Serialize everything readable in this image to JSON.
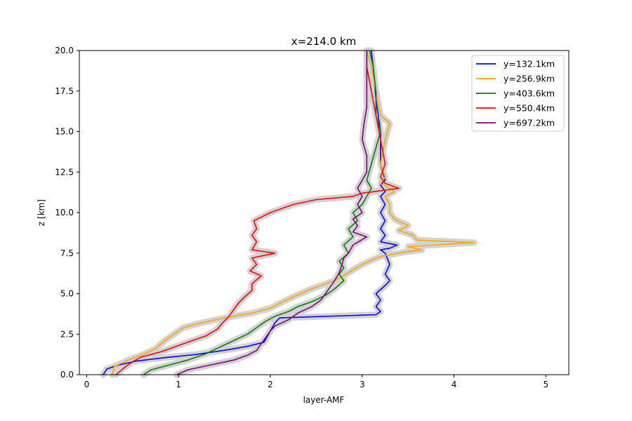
{
  "chart_data": {
    "type": "line",
    "title": "x=214.0 km",
    "xlabel": "layer-AMF",
    "ylabel": "z [km]",
    "xlim": [
      -0.08,
      5.25
    ],
    "ylim": [
      0,
      20
    ],
    "xticks": [
      0,
      1,
      2,
      3,
      4,
      5
    ],
    "xtick_labels": [
      "0",
      "1",
      "2",
      "3",
      "4",
      "5"
    ],
    "yticks": [
      0,
      2.5,
      5,
      7.5,
      10,
      12.5,
      15,
      17.5,
      20
    ],
    "ytick_labels": [
      "0.0",
      "2.5",
      "5.0",
      "7.5",
      "10.0",
      "12.5",
      "15.0",
      "17.5",
      "20.0"
    ],
    "grid": false,
    "legend_position": "top-right",
    "uncertainty_band_color": "#d3d3d3",
    "series": [
      {
        "name": "y=132.1km",
        "color": "#0000ff",
        "points": [
          [
            0.18,
            0
          ],
          [
            0.22,
            0.35
          ],
          [
            0.35,
            0.6
          ],
          [
            0.55,
            0.85
          ],
          [
            0.85,
            1.05
          ],
          [
            1.2,
            1.25
          ],
          [
            1.55,
            1.55
          ],
          [
            1.75,
            1.75
          ],
          [
            1.93,
            2.0
          ],
          [
            1.98,
            2.5
          ],
          [
            2.05,
            3.2
          ],
          [
            2.1,
            3.5
          ],
          [
            3.15,
            3.7
          ],
          [
            3.2,
            3.9
          ],
          [
            3.15,
            4.2
          ],
          [
            3.2,
            4.6
          ],
          [
            3.15,
            5.0
          ],
          [
            3.25,
            5.5
          ],
          [
            3.3,
            5.8
          ],
          [
            3.25,
            6.2
          ],
          [
            3.3,
            6.8
          ],
          [
            3.25,
            7.5
          ],
          [
            3.2,
            7.7
          ],
          [
            3.3,
            7.8
          ],
          [
            3.38,
            8.0
          ],
          [
            3.2,
            8.2
          ],
          [
            3.25,
            8.6
          ],
          [
            3.2,
            9.0
          ],
          [
            3.25,
            9.5
          ],
          [
            3.2,
            10.0
          ],
          [
            3.25,
            10.5
          ],
          [
            3.2,
            11.0
          ],
          [
            3.25,
            11.3
          ],
          [
            3.2,
            11.7
          ],
          [
            3.25,
            12.0
          ],
          [
            3.2,
            13.0
          ],
          [
            3.2,
            15.0
          ],
          [
            3.15,
            17.0
          ],
          [
            3.12,
            19.0
          ],
          [
            3.1,
            20.0
          ]
        ]
      },
      {
        "name": "y=256.9km",
        "color": "#ffa500",
        "points": [
          [
            0.28,
            0
          ],
          [
            0.3,
            0.5
          ],
          [
            0.45,
            0.9
          ],
          [
            0.6,
            1.2
          ],
          [
            0.75,
            1.6
          ],
          [
            0.85,
            2.1
          ],
          [
            0.95,
            2.5
          ],
          [
            1.05,
            2.9
          ],
          [
            1.25,
            3.2
          ],
          [
            1.5,
            3.5
          ],
          [
            1.8,
            3.8
          ],
          [
            2.0,
            4.1
          ],
          [
            2.1,
            4.4
          ],
          [
            2.25,
            4.8
          ],
          [
            2.45,
            5.3
          ],
          [
            2.7,
            5.8
          ],
          [
            2.85,
            6.3
          ],
          [
            3.0,
            6.8
          ],
          [
            3.2,
            7.3
          ],
          [
            3.5,
            7.6
          ],
          [
            3.65,
            7.7
          ],
          [
            3.5,
            7.9
          ],
          [
            4.22,
            8.15
          ],
          [
            3.6,
            8.3
          ],
          [
            3.55,
            8.6
          ],
          [
            3.4,
            8.9
          ],
          [
            3.5,
            9.2
          ],
          [
            3.35,
            9.6
          ],
          [
            3.3,
            10.0
          ],
          [
            3.3,
            10.5
          ],
          [
            3.25,
            11.0
          ],
          [
            3.35,
            11.3
          ],
          [
            3.3,
            11.5
          ],
          [
            3.2,
            11.8
          ],
          [
            3.25,
            12.2
          ],
          [
            3.2,
            13.0
          ],
          [
            3.25,
            14.5
          ],
          [
            3.3,
            15.5
          ],
          [
            3.2,
            16.0
          ],
          [
            3.15,
            17.5
          ],
          [
            3.1,
            19.0
          ],
          [
            3.05,
            20.0
          ]
        ]
      },
      {
        "name": "y=403.6km",
        "color": "#008000",
        "points": [
          [
            0.62,
            0
          ],
          [
            0.7,
            0.3
          ],
          [
            0.9,
            0.6
          ],
          [
            1.1,
            0.9
          ],
          [
            1.3,
            1.3
          ],
          [
            1.45,
            1.7
          ],
          [
            1.6,
            2.1
          ],
          [
            1.75,
            2.5
          ],
          [
            1.85,
            2.9
          ],
          [
            1.95,
            3.3
          ],
          [
            2.05,
            3.6
          ],
          [
            2.2,
            3.9
          ],
          [
            2.3,
            4.2
          ],
          [
            2.45,
            4.5
          ],
          [
            2.6,
            4.9
          ],
          [
            2.7,
            5.3
          ],
          [
            2.8,
            5.8
          ],
          [
            2.75,
            6.2
          ],
          [
            2.8,
            6.6
          ],
          [
            2.75,
            7.0
          ],
          [
            2.85,
            7.5
          ],
          [
            2.8,
            8.0
          ],
          [
            2.9,
            8.5
          ],
          [
            2.85,
            9.0
          ],
          [
            2.95,
            9.5
          ],
          [
            2.9,
            10.0
          ],
          [
            3.0,
            10.5
          ],
          [
            3.05,
            11.0
          ],
          [
            3.1,
            11.5
          ],
          [
            3.05,
            12.0
          ],
          [
            3.1,
            13.0
          ],
          [
            3.15,
            14.0
          ],
          [
            3.2,
            15.0
          ],
          [
            3.15,
            16.0
          ],
          [
            3.15,
            17.5
          ],
          [
            3.12,
            19.0
          ],
          [
            3.08,
            20.0
          ]
        ]
      },
      {
        "name": "y=550.4km",
        "color": "#ff0000",
        "points": [
          [
            0.32,
            0
          ],
          [
            0.4,
            0.4
          ],
          [
            0.5,
            0.8
          ],
          [
            0.6,
            1.1
          ],
          [
            0.8,
            1.4
          ],
          [
            0.95,
            1.7
          ],
          [
            1.1,
            2.0
          ],
          [
            1.3,
            2.4
          ],
          [
            1.42,
            2.8
          ],
          [
            1.48,
            3.2
          ],
          [
            1.55,
            3.6
          ],
          [
            1.6,
            4.0
          ],
          [
            1.65,
            4.4
          ],
          [
            1.72,
            4.8
          ],
          [
            1.8,
            5.2
          ],
          [
            1.8,
            5.6
          ],
          [
            1.9,
            6.1
          ],
          [
            1.78,
            6.4
          ],
          [
            1.85,
            6.8
          ],
          [
            1.8,
            7.2
          ],
          [
            2.05,
            7.5
          ],
          [
            1.8,
            7.7
          ],
          [
            1.85,
            8.2
          ],
          [
            1.8,
            8.6
          ],
          [
            1.85,
            9.0
          ],
          [
            1.82,
            9.5
          ],
          [
            2.0,
            10.0
          ],
          [
            2.25,
            10.5
          ],
          [
            2.5,
            10.8
          ],
          [
            2.9,
            11.0
          ],
          [
            3.0,
            11.2
          ],
          [
            3.4,
            11.5
          ],
          [
            3.25,
            11.8
          ],
          [
            3.2,
            12.2
          ],
          [
            3.25,
            13.0
          ],
          [
            3.2,
            14.5
          ],
          [
            3.15,
            16.0
          ],
          [
            3.1,
            17.5
          ],
          [
            3.05,
            19.0
          ],
          [
            3.05,
            20.0
          ]
        ]
      },
      {
        "name": "y=697.2km",
        "color": "#800080",
        "points": [
          [
            0.98,
            0
          ],
          [
            1.1,
            0.3
          ],
          [
            1.35,
            0.6
          ],
          [
            1.6,
            0.9
          ],
          [
            1.75,
            1.2
          ],
          [
            1.85,
            1.5
          ],
          [
            1.9,
            1.9
          ],
          [
            1.95,
            2.3
          ],
          [
            2.0,
            2.7
          ],
          [
            2.05,
            3.0
          ],
          [
            2.2,
            3.4
          ],
          [
            2.3,
            3.8
          ],
          [
            2.45,
            4.2
          ],
          [
            2.55,
            4.6
          ],
          [
            2.6,
            5.0
          ],
          [
            2.65,
            5.4
          ],
          [
            2.7,
            5.8
          ],
          [
            2.75,
            6.3
          ],
          [
            2.78,
            6.8
          ],
          [
            2.8,
            7.2
          ],
          [
            2.85,
            7.5
          ],
          [
            2.9,
            8.0
          ],
          [
            3.05,
            8.5
          ],
          [
            2.9,
            8.8
          ],
          [
            2.95,
            9.2
          ],
          [
            2.9,
            9.6
          ],
          [
            3.0,
            10.0
          ],
          [
            2.95,
            10.5
          ],
          [
            3.0,
            11.0
          ],
          [
            2.95,
            11.5
          ],
          [
            3.0,
            12.0
          ],
          [
            3.05,
            12.5
          ],
          [
            3.05,
            13.5
          ],
          [
            3.0,
            14.5
          ],
          [
            3.02,
            15.5
          ],
          [
            3.05,
            16.5
          ],
          [
            3.05,
            18.0
          ],
          [
            3.05,
            20.0
          ]
        ]
      }
    ]
  }
}
